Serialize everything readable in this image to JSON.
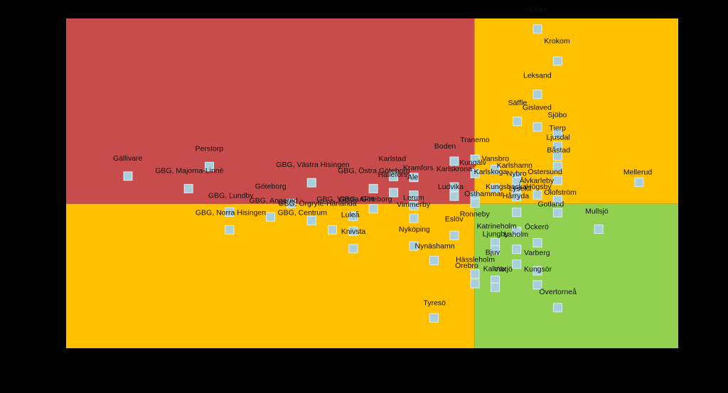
{
  "chart_data": {
    "type": "scatter",
    "title": "",
    "xlabel": "",
    "ylabel": "",
    "grid": false,
    "legend": "none",
    "colors": {
      "background": "#000000",
      "top_left": "#c94c4c",
      "top_right": "#ffc000",
      "bottom_left": "#ffc000",
      "bottom_right": "#92d050",
      "marker_fill": "#a9cfdc",
      "marker_stroke": "#d9eef4",
      "label": "#111111"
    },
    "xlim": [
      0,
      100
    ],
    "ylim": [
      0,
      100
    ],
    "x_divider": 66.7,
    "y_divider": 43.8,
    "points": [
      {
        "name": "Hofors",
        "x": 77.0,
        "y": 96.8
      },
      {
        "name": "Krokom",
        "x": 80.3,
        "y": 87.1
      },
      {
        "name": "Leksand",
        "x": 77.0,
        "y": 77.0
      },
      {
        "name": "Säffle",
        "x": 73.7,
        "y": 68.8
      },
      {
        "name": "Gislaved",
        "x": 77.0,
        "y": 67.1
      },
      {
        "name": "Sjöbo",
        "x": 80.3,
        "y": 65.1
      },
      {
        "name": "Tierp",
        "x": 80.3,
        "y": 61.3
      },
      {
        "name": "Ljusdal",
        "x": 80.3,
        "y": 58.3
      },
      {
        "name": "Båstad",
        "x": 80.3,
        "y": 55.1
      },
      {
        "name": "Mellerud",
        "x": 93.6,
        "y": 50.3
      },
      {
        "name": "Perstorp",
        "x": 23.4,
        "y": 55.1
      },
      {
        "name": "Gällivare",
        "x": 10.1,
        "y": 52.2
      },
      {
        "name": "GBG, Majorna-Linné",
        "x": 20.0,
        "y": 48.4
      },
      {
        "name": "GBG, Västra Hisingen",
        "x": 40.1,
        "y": 50.2
      },
      {
        "name": "Karlstad",
        "x": 53.5,
        "y": 52.1
      },
      {
        "name": "GBG, Östra Göteborg",
        "x": 50.2,
        "y": 48.4
      },
      {
        "name": "Kramfors",
        "x": 56.8,
        "y": 51.8
      },
      {
        "name": "Boden",
        "x": 63.4,
        "y": 56.7
      },
      {
        "name": "Tranemo",
        "x": 66.8,
        "y": 57.3
      },
      {
        "name": "Vansbro",
        "x": 70.1,
        "y": 54.2
      },
      {
        "name": "Kungälv",
        "x": 66.8,
        "y": 53.0
      },
      {
        "name": "Karlshamn",
        "x": 73.6,
        "y": 51.9
      },
      {
        "name": "Nybro",
        "x": 73.6,
        "y": 50.5
      },
      {
        "name": "Östersund",
        "x": 80.3,
        "y": 50.9
      },
      {
        "name": "Karlskrona",
        "x": 63.4,
        "y": 48.9
      },
      {
        "name": "Karlskoga",
        "x": 70.1,
        "y": 48.5
      },
      {
        "name": "Älvkarleby",
        "x": 73.6,
        "y": 48.4
      },
      {
        "name": "Hällefors",
        "x": 53.5,
        "y": 47.2
      },
      {
        "name": "Ale",
        "x": 56.8,
        "y": 46.4
      },
      {
        "name": "Ludvika",
        "x": 63.4,
        "y": 46.1
      },
      {
        "name": "Kungsbacka",
        "x": 66.8,
        "y": 46.1
      },
      {
        "name": "Lysekil",
        "x": 73.6,
        "y": 46.0
      },
      {
        "name": "Högsby",
        "x": 77.0,
        "y": 46.5
      },
      {
        "name": "Olofström",
        "x": 80.3,
        "y": 45.0
      },
      {
        "name": "Östhammar",
        "x": 66.8,
        "y": 44.0
      },
      {
        "name": "Göteborg",
        "x": 36.8,
        "y": 43.9
      },
      {
        "name": "Lerum",
        "x": 56.8,
        "y": 43.2
      },
      {
        "name": "GBG, Västra Göteborg",
        "x": 50.2,
        "y": 42.3
      },
      {
        "name": "Hårryda",
        "x": 73.6,
        "y": 41.2
      },
      {
        "name": "Gotland",
        "x": 80.3,
        "y": 41.1
      },
      {
        "name": "GBG, Lundby",
        "x": 26.7,
        "y": 41.3
      },
      {
        "name": "GBG, Angered",
        "x": 33.4,
        "y": 39.8
      },
      {
        "name": "GBG, AFH",
        "x": 46.9,
        "y": 40.0
      },
      {
        "name": "Vimmerby",
        "x": 56.8,
        "y": 39.4
      },
      {
        "name": "GBG, Örgryte-Härlanda",
        "x": 40.1,
        "y": 38.7
      },
      {
        "name": "Mullsjö",
        "x": 87.0,
        "y": 36.1
      },
      {
        "name": "Ronneby",
        "x": 73.6,
        "y": 35.4
      },
      {
        "name": "GBG, Norra Hisingen",
        "x": 26.7,
        "y": 35.9
      },
      {
        "name": "GBG, Centrum",
        "x": 43.5,
        "y": 35.9
      },
      {
        "name": "Luleå",
        "x": 46.9,
        "y": 35.5
      },
      {
        "name": "Eslöv",
        "x": 63.4,
        "y": 34.2
      },
      {
        "name": "Katrineholm",
        "x": 70.1,
        "y": 32.0
      },
      {
        "name": "Öckerö",
        "x": 77.0,
        "y": 32.0
      },
      {
        "name": "Knivsta",
        "x": 46.9,
        "y": 30.2
      },
      {
        "name": "Ljungby",
        "x": 70.1,
        "y": 29.8
      },
      {
        "name": "Laholm",
        "x": 73.6,
        "y": 30.0
      },
      {
        "name": "Nyköping",
        "x": 56.8,
        "y": 31.0
      },
      {
        "name": "Bjuv",
        "x": 73.6,
        "y": 25.5
      },
      {
        "name": "Varberg",
        "x": 77.0,
        "y": 23.5
      },
      {
        "name": "Nynäshamn",
        "x": 60.1,
        "y": 26.6
      },
      {
        "name": "Hässleholm",
        "x": 66.8,
        "y": 22.5
      },
      {
        "name": "Kalmar",
        "x": 70.1,
        "y": 20.6
      },
      {
        "name": "Kungsör",
        "x": 77.0,
        "y": 19.2
      },
      {
        "name": "Örebro",
        "x": 66.8,
        "y": 19.6
      },
      {
        "name": "Växjö",
        "x": 70.1,
        "y": 18.5
      },
      {
        "name": "Övertorneå",
        "x": 80.3,
        "y": 12.3
      },
      {
        "name": "Tyresö",
        "x": 60.1,
        "y": 9.2
      }
    ]
  }
}
